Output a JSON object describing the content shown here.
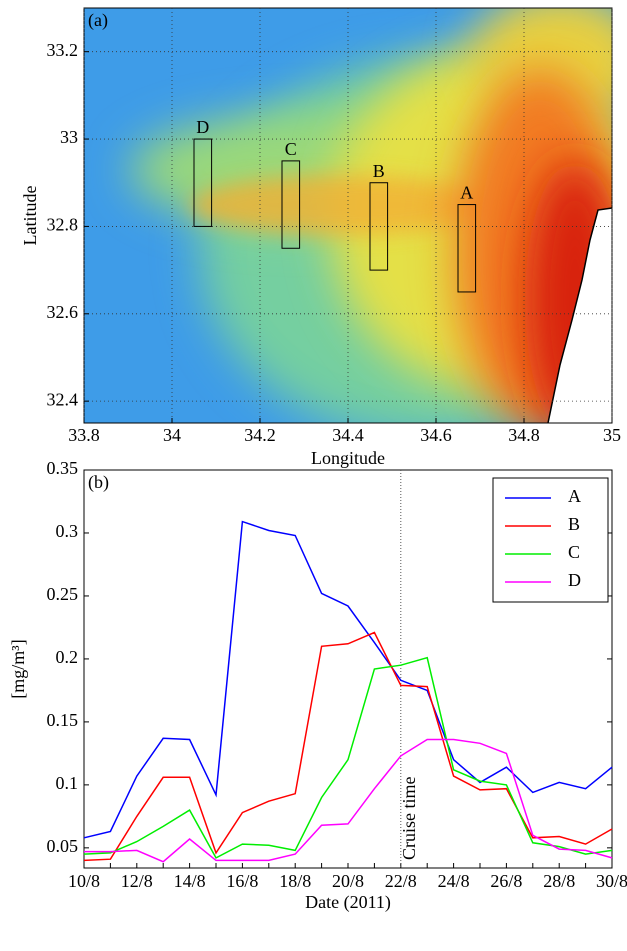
{
  "chart_data": [
    {
      "type": "map",
      "panel_label": "(a)",
      "x_label": "Longitude",
      "y_label": "Latitude",
      "xlim": [
        33.8,
        35
      ],
      "ylim": [
        32.35,
        33.3
      ],
      "xticks": [
        33.8,
        34,
        34.2,
        34.4,
        34.6,
        34.8,
        35
      ],
      "yticks": [
        32.4,
        32.6,
        32.8,
        33,
        33.2
      ],
      "grid": true,
      "regions": [
        {
          "label": "A",
          "lon": [
            34.65,
            34.69
          ],
          "lat": [
            32.65,
            32.85
          ]
        },
        {
          "label": "B",
          "lon": [
            34.45,
            34.49
          ],
          "lat": [
            32.7,
            32.9
          ]
        },
        {
          "label": "C",
          "lon": [
            34.25,
            34.29
          ],
          "lat": [
            32.75,
            32.95
          ]
        },
        {
          "label": "D",
          "lon": [
            34.05,
            34.09
          ],
          "lat": [
            32.8,
            33.0
          ]
        }
      ]
    },
    {
      "type": "line",
      "panel_label": "(b)",
      "x_label": "Date (2011)",
      "y_label": "[mg/m³]",
      "categories": [
        "10/8",
        null,
        "12/8",
        null,
        "14/8",
        null,
        "16/8",
        null,
        "18/8",
        null,
        "20/8",
        null,
        "22/8",
        null,
        "24/8",
        null,
        "26/8",
        null,
        "28/8",
        null,
        "30/8"
      ],
      "ylim": [
        0.034,
        0.35
      ],
      "yticks": [
        0.05,
        0.1,
        0.15,
        0.2,
        0.25,
        0.3,
        0.35
      ],
      "legend": "top-right",
      "vline": "22/8",
      "vline_label": "Cruise time",
      "series": [
        {
          "name": "A",
          "color": "#0000ff",
          "values": [
            0.058,
            0.063,
            0.107,
            0.137,
            0.136,
            0.092,
            0.309,
            0.302,
            0.298,
            0.252,
            0.242,
            0.213,
            0.183,
            0.175,
            0.12,
            0.102,
            0.114,
            0.094,
            0.102,
            0.097,
            0.114
          ]
        },
        {
          "name": "B",
          "color": "#ff0000",
          "values": [
            0.04,
            0.041,
            0.075,
            0.106,
            0.106,
            0.046,
            0.078,
            0.087,
            0.093,
            0.21,
            0.212,
            0.221,
            0.179,
            0.178,
            0.107,
            0.096,
            0.097,
            0.058,
            0.059,
            0.053,
            0.065
          ]
        },
        {
          "name": "C",
          "color": "#00ee00",
          "values": [
            0.045,
            0.046,
            0.055,
            0.067,
            0.08,
            0.042,
            0.053,
            0.052,
            0.048,
            0.09,
            0.12,
            0.192,
            0.195,
            0.201,
            0.112,
            0.103,
            0.1,
            0.054,
            0.051,
            0.045,
            0.048
          ]
        },
        {
          "name": "D",
          "color": "#ff00ff",
          "values": [
            0.047,
            0.047,
            0.048,
            0.039,
            0.057,
            0.04,
            0.04,
            0.04,
            0.045,
            0.068,
            0.069,
            0.097,
            0.123,
            0.136,
            0.136,
            0.133,
            0.125,
            0.06,
            0.049,
            0.048,
            0.042
          ]
        }
      ]
    }
  ]
}
